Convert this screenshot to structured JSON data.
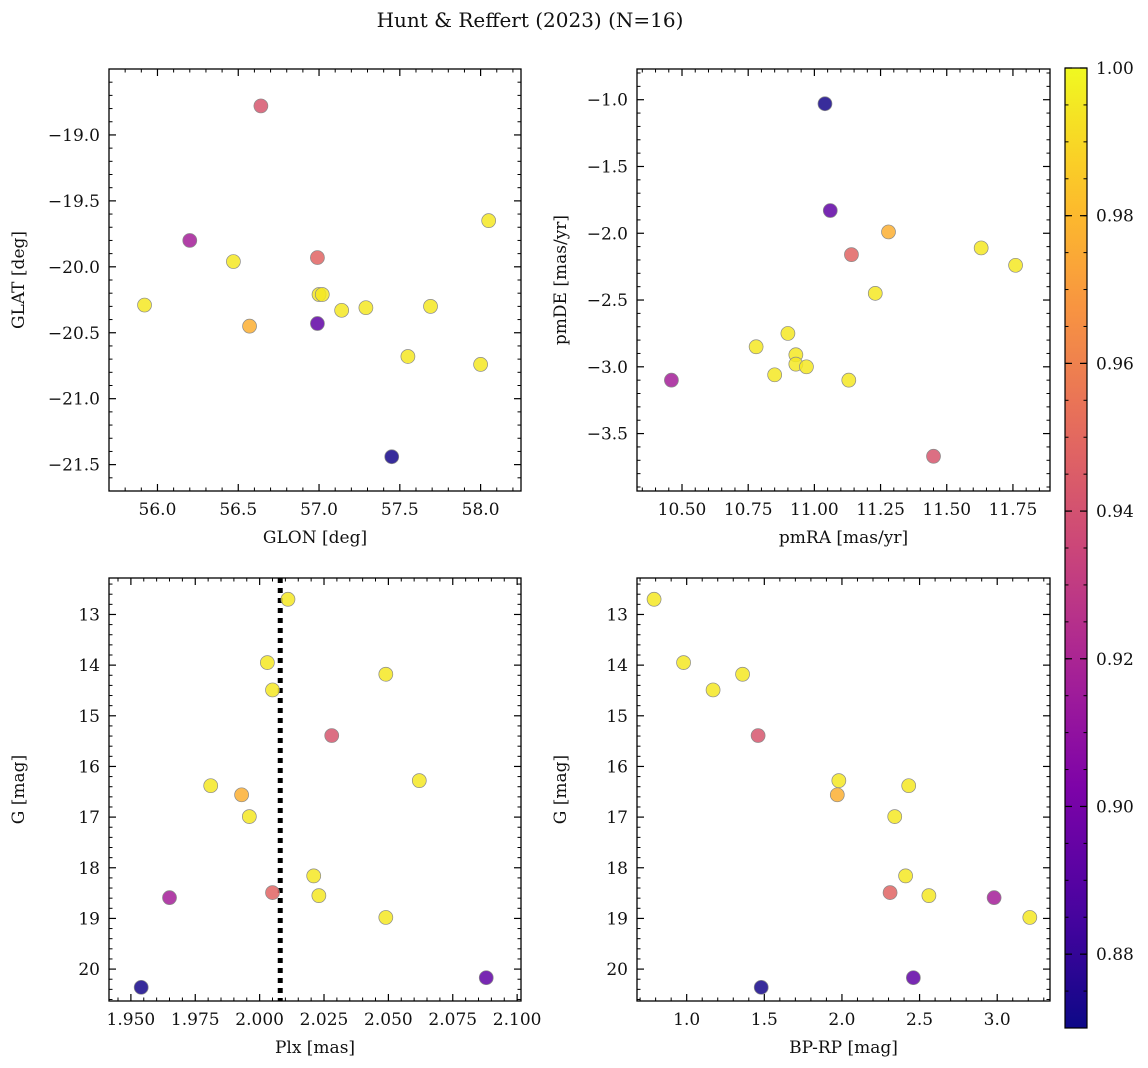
{
  "figure": {
    "title": "Hunt & Reffert (2023) (N=16)"
  },
  "colorbar": {
    "cmap": "plasma",
    "vmin": 0.87,
    "vmax": 1.0,
    "ticks": [
      0.88,
      0.9,
      0.92,
      0.94,
      0.96,
      0.98,
      1.0
    ],
    "tick_labels": [
      "0.88",
      "0.90",
      "0.92",
      "0.94",
      "0.96",
      "0.98",
      "1.00"
    ]
  },
  "chart_data": [
    {
      "type": "scatter",
      "id": "glon-glat",
      "xlabel": "GLON [deg]",
      "ylabel": "GLAT [deg]",
      "xlim": [
        55.7,
        58.25
      ],
      "ylim": [
        -21.7,
        -18.5
      ],
      "invert_y": false,
      "xticks": [
        56.0,
        56.5,
        57.0,
        57.5,
        58.0
      ],
      "xtick_labels": [
        "56.0",
        "56.5",
        "57.0",
        "57.5",
        "58.0"
      ],
      "yticks": [
        -19.0,
        -19.5,
        -20.0,
        -20.5,
        -21.0,
        -21.5
      ],
      "ytick_labels": [
        "−19.0",
        "−19.5",
        "−20.0",
        "−20.5",
        "−21.0",
        "−21.5"
      ],
      "points": [
        {
          "x": 55.92,
          "y": -20.29,
          "c": 0.995
        },
        {
          "x": 56.2,
          "y": -19.8,
          "c": 0.917
        },
        {
          "x": 56.47,
          "y": -19.96,
          "c": 0.995
        },
        {
          "x": 56.57,
          "y": -20.45,
          "c": 0.977
        },
        {
          "x": 56.64,
          "y": -18.78,
          "c": 0.942
        },
        {
          "x": 56.99,
          "y": -19.93,
          "c": 0.948
        },
        {
          "x": 56.99,
          "y": -20.43,
          "c": 0.893
        },
        {
          "x": 57.0,
          "y": -20.21,
          "c": 0.995
        },
        {
          "x": 57.02,
          "y": -20.21,
          "c": 0.995
        },
        {
          "x": 57.14,
          "y": -20.33,
          "c": 0.995
        },
        {
          "x": 57.29,
          "y": -20.31,
          "c": 0.995
        },
        {
          "x": 57.45,
          "y": -21.44,
          "c": 0.872
        },
        {
          "x": 57.55,
          "y": -20.68,
          "c": 0.995
        },
        {
          "x": 57.69,
          "y": -20.3,
          "c": 0.995
        },
        {
          "x": 58.0,
          "y": -20.74,
          "c": 0.995
        },
        {
          "x": 58.05,
          "y": -19.65,
          "c": 0.995
        }
      ]
    },
    {
      "type": "scatter",
      "id": "pmra-pmde",
      "xlabel": "pmRA [mas/yr]",
      "ylabel": "pmDE [mas/yr]",
      "xlim": [
        10.33,
        11.89
      ],
      "ylim": [
        -3.93,
        -0.77
      ],
      "invert_y": false,
      "xticks": [
        10.5,
        10.75,
        11.0,
        11.25,
        11.5,
        11.75
      ],
      "xtick_labels": [
        "10.50",
        "10.75",
        "11.00",
        "11.25",
        "11.50",
        "11.75"
      ],
      "yticks": [
        -1.0,
        -1.5,
        -2.0,
        -2.5,
        -3.0,
        -3.5
      ],
      "ytick_labels": [
        "−1.0",
        "−1.5",
        "−2.0",
        "−2.5",
        "−3.0",
        "−3.5"
      ],
      "points": [
        {
          "x": 10.46,
          "y": -3.1,
          "c": 0.917
        },
        {
          "x": 10.78,
          "y": -2.85,
          "c": 0.995
        },
        {
          "x": 10.85,
          "y": -3.06,
          "c": 0.995
        },
        {
          "x": 10.9,
          "y": -2.75,
          "c": 0.995
        },
        {
          "x": 10.93,
          "y": -2.91,
          "c": 0.995
        },
        {
          "x": 10.93,
          "y": -2.98,
          "c": 0.995
        },
        {
          "x": 10.97,
          "y": -3.0,
          "c": 0.995
        },
        {
          "x": 11.04,
          "y": -1.03,
          "c": 0.872
        },
        {
          "x": 11.06,
          "y": -1.83,
          "c": 0.893
        },
        {
          "x": 11.13,
          "y": -3.1,
          "c": 0.995
        },
        {
          "x": 11.14,
          "y": -2.16,
          "c": 0.948
        },
        {
          "x": 11.23,
          "y": -2.45,
          "c": 0.995
        },
        {
          "x": 11.28,
          "y": -1.99,
          "c": 0.977
        },
        {
          "x": 11.45,
          "y": -3.67,
          "c": 0.942
        },
        {
          "x": 11.63,
          "y": -2.11,
          "c": 0.995
        },
        {
          "x": 11.76,
          "y": -2.24,
          "c": 0.995
        }
      ]
    },
    {
      "type": "scatter",
      "id": "plx-g",
      "xlabel": "Plx [mas]",
      "ylabel": "G [mag]",
      "xlim": [
        1.9415,
        2.1015
      ],
      "ylim": [
        20.63,
        12.28
      ],
      "invert_y": true,
      "vline": {
        "x": 2.008,
        "style": "dotted",
        "color": "#000000"
      },
      "xticks": [
        1.95,
        1.975,
        2.0,
        2.025,
        2.05,
        2.075,
        2.1
      ],
      "xtick_labels": [
        "1.950",
        "1.975",
        "2.000",
        "2.025",
        "2.050",
        "2.075",
        "2.100"
      ],
      "yticks": [
        13,
        14,
        15,
        16,
        17,
        18,
        19,
        20
      ],
      "ytick_labels": [
        "13",
        "14",
        "15",
        "16",
        "17",
        "18",
        "19",
        "20"
      ],
      "points": [
        {
          "x": 1.954,
          "y": 20.36,
          "c": 0.872
        },
        {
          "x": 1.965,
          "y": 18.59,
          "c": 0.917
        },
        {
          "x": 1.981,
          "y": 16.38,
          "c": 0.995
        },
        {
          "x": 1.993,
          "y": 16.56,
          "c": 0.977
        },
        {
          "x": 1.996,
          "y": 16.99,
          "c": 0.995
        },
        {
          "x": 2.003,
          "y": 13.95,
          "c": 0.995
        },
        {
          "x": 2.005,
          "y": 14.49,
          "c": 0.995
        },
        {
          "x": 2.005,
          "y": 18.49,
          "c": 0.948
        },
        {
          "x": 2.011,
          "y": 12.7,
          "c": 0.995
        },
        {
          "x": 2.021,
          "y": 18.16,
          "c": 0.995
        },
        {
          "x": 2.023,
          "y": 18.55,
          "c": 0.995
        },
        {
          "x": 2.028,
          "y": 15.39,
          "c": 0.942
        },
        {
          "x": 2.049,
          "y": 18.98,
          "c": 0.995
        },
        {
          "x": 2.049,
          "y": 14.18,
          "c": 0.995
        },
        {
          "x": 2.062,
          "y": 16.28,
          "c": 0.995
        },
        {
          "x": 2.088,
          "y": 20.17,
          "c": 0.893
        }
      ]
    },
    {
      "type": "scatter",
      "id": "bprp-g",
      "xlabel": "BP-RP [mag]",
      "ylabel": "G [mag]",
      "xlim": [
        0.68,
        3.34
      ],
      "ylim": [
        20.63,
        12.28
      ],
      "invert_y": true,
      "xticks": [
        1.0,
        1.5,
        2.0,
        2.5,
        3.0
      ],
      "xtick_labels": [
        "1.0",
        "1.5",
        "2.0",
        "2.5",
        "3.0"
      ],
      "yticks": [
        13,
        14,
        15,
        16,
        17,
        18,
        19,
        20
      ],
      "ytick_labels": [
        "13",
        "14",
        "15",
        "16",
        "17",
        "18",
        "19",
        "20"
      ],
      "points": [
        {
          "x": 0.79,
          "y": 12.7,
          "c": 0.995
        },
        {
          "x": 0.98,
          "y": 13.95,
          "c": 0.995
        },
        {
          "x": 1.17,
          "y": 14.49,
          "c": 0.995
        },
        {
          "x": 1.36,
          "y": 14.18,
          "c": 0.995
        },
        {
          "x": 1.46,
          "y": 15.39,
          "c": 0.942
        },
        {
          "x": 1.48,
          "y": 20.36,
          "c": 0.872
        },
        {
          "x": 1.97,
          "y": 16.56,
          "c": 0.977
        },
        {
          "x": 1.98,
          "y": 16.28,
          "c": 0.995
        },
        {
          "x": 2.31,
          "y": 18.49,
          "c": 0.948
        },
        {
          "x": 2.34,
          "y": 16.99,
          "c": 0.995
        },
        {
          "x": 2.41,
          "y": 18.16,
          "c": 0.995
        },
        {
          "x": 2.43,
          "y": 16.38,
          "c": 0.995
        },
        {
          "x": 2.46,
          "y": 20.17,
          "c": 0.893
        },
        {
          "x": 2.56,
          "y": 18.55,
          "c": 0.995
        },
        {
          "x": 2.98,
          "y": 18.59,
          "c": 0.917
        },
        {
          "x": 3.21,
          "y": 18.98,
          "c": 0.995
        }
      ]
    }
  ]
}
